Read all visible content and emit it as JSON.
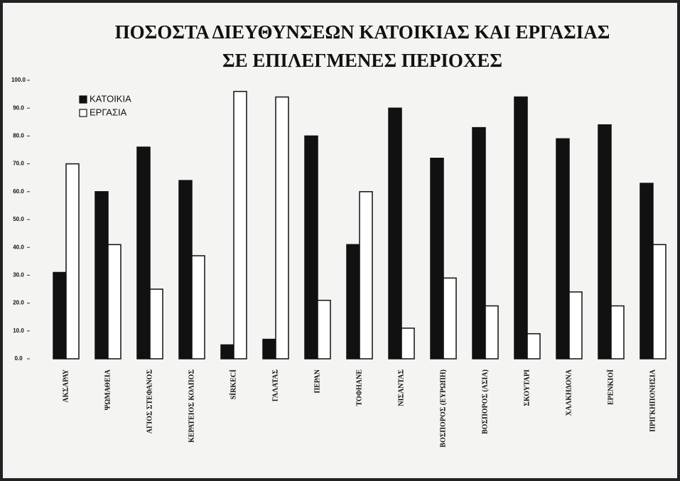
{
  "chart_data": {
    "type": "bar",
    "title": "ΠΟΣΟΣΤΑ ΔΙΕΥΘΥΝΣΕΩΝ ΚΑΤΟΙΚΙΑΣ ΚΑΙ ΕΡΓΑΣΙΑΣ",
    "subtitle": "ΣΕ ΕΠΙΛΕΓΜΕΝΕΣ ΠΕΡΙΟΧΕΣ",
    "categories": [
      "ΑΚΣΑΡΑΥ",
      "ΨΩΜΑΘΕΙΑ",
      "ΑΓΙΟΣ ΣΤΕΦΑΝΟΣ",
      "ΚΕΡΑΤΕΙΟΣ ΚΟΛΠΟΣ",
      "SİRKECİ",
      "ΓΑΛΑΤΑΣ",
      "ΠΕΡΑΝ",
      "ΤΟΦΗΑΝΕ",
      "ΝΙΣΑΝΤΑΣ",
      "ΒΟΣΠΟΡΟΣ (ΕΥΡΩΠΗ)",
      "ΒΟΣΠΟΡΟΣ (ΑΣΙΑ)",
      "ΣΚΟΥΤΑΡΙ",
      "ΧΑΛΚΗΔΟΝΑ",
      "ΕΡΕΝΚΙΟΪ",
      "ΠΡΙΓΚΗΠΟΝΗΣΙΑ"
    ],
    "series": [
      {
        "name": "ΚΑΤΟΙΚΙΑ",
        "color": "#111111",
        "values": [
          31,
          60,
          76,
          64,
          5,
          7,
          80,
          41,
          90,
          72,
          83,
          94,
          79,
          84,
          63
        ]
      },
      {
        "name": "ΕΡΓΑΣΙΑ",
        "color": "#ffffff",
        "values": [
          70,
          41,
          25,
          37,
          96,
          94,
          21,
          60,
          11,
          29,
          19,
          9,
          24,
          19,
          41
        ]
      }
    ],
    "ylim": [
      0,
      100
    ],
    "yticks": [
      {
        "value": 0,
        "label": "0.0"
      },
      {
        "value": 10,
        "label": "10.0"
      },
      {
        "value": 20,
        "label": "20.0"
      },
      {
        "value": 30,
        "label": "30.0"
      },
      {
        "value": 40,
        "label": "40.0"
      },
      {
        "value": 50,
        "label": "50.0"
      },
      {
        "value": 60,
        "label": "60.0"
      },
      {
        "value": 70,
        "label": "70.0"
      },
      {
        "value": 80,
        "label": "80.0"
      },
      {
        "value": 90,
        "label": "90.0"
      },
      {
        "value": 100,
        "label": "100.0"
      }
    ],
    "legend": "top-left"
  }
}
